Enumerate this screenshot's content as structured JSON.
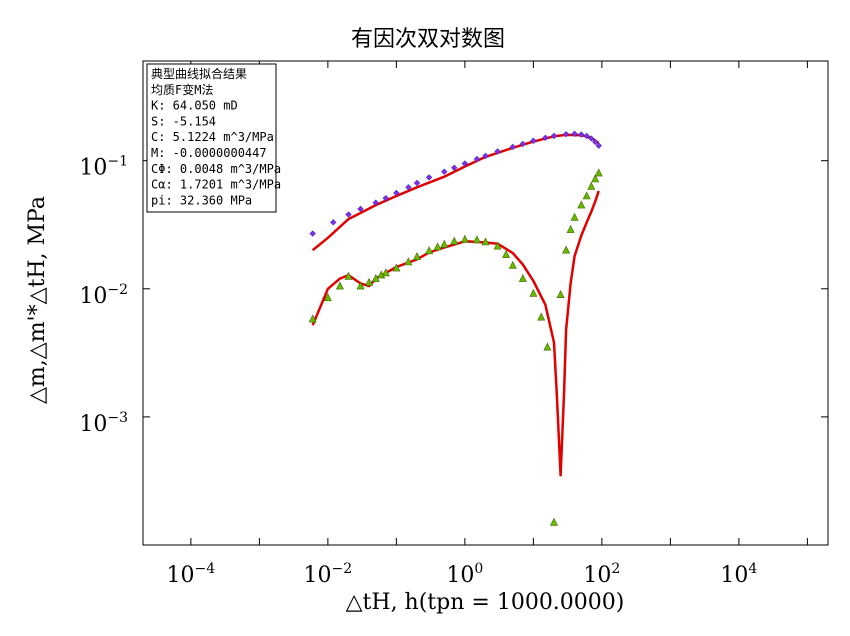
{
  "chart_data": {
    "type": "scatter",
    "title": "有因次双对数图",
    "xlabel": "△tH, h(tpn = 1000.0000)",
    "ylabel": "△m,△m'*△tH, MPa",
    "x_scale": "log",
    "y_scale": "log",
    "xlim": [
      2e-05,
      200000
    ],
    "ylim": [
      0.0001,
      0.6
    ],
    "x_ticks": [
      {
        "base": "10",
        "exp": "−4",
        "value": 0.0001
      },
      {
        "base": "10",
        "exp": "−2",
        "value": 0.01
      },
      {
        "base": "10",
        "exp": "0",
        "value": 1
      },
      {
        "base": "10",
        "exp": "2",
        "value": 100
      },
      {
        "base": "10",
        "exp": "4",
        "value": 10000
      }
    ],
    "y_ticks": [
      {
        "base": "10",
        "exp": "−1",
        "value": 0.1
      },
      {
        "base": "10",
        "exp": "−2",
        "value": 0.01
      },
      {
        "base": "10",
        "exp": "−3",
        "value": 0.001
      }
    ],
    "legend": {
      "placement": "top-left",
      "lines": [
        "典型曲线拟合结果",
        "均质F变M法",
        "  K: 64.050 mD",
        "  S: -5.154",
        "  C: 5.1224 m^3/MPa",
        "  M: -0.0000000447",
        "CΦ: 0.0048 m^3/MPa",
        "Cα: 1.7201 m^3/MPa",
        " pi: 32.360 MPa"
      ]
    },
    "colors": {
      "pressure_points": "#8a2be2",
      "derivative_points": "#66bb00",
      "model_curve": "#e00000"
    },
    "pressure_points": {
      "x": [
        0.006,
        0.012,
        0.02,
        0.03,
        0.05,
        0.07,
        0.1,
        0.15,
        0.2,
        0.3,
        0.5,
        0.7,
        1,
        1.5,
        2,
        3,
        5,
        7,
        10,
        15,
        20,
        30,
        40,
        50,
        60,
        70,
        80,
        90
      ],
      "y": [
        0.027,
        0.033,
        0.038,
        0.042,
        0.047,
        0.051,
        0.056,
        0.062,
        0.067,
        0.074,
        0.082,
        0.088,
        0.095,
        0.103,
        0.109,
        0.118,
        0.128,
        0.135,
        0.143,
        0.151,
        0.156,
        0.161,
        0.162,
        0.16,
        0.156,
        0.149,
        0.14,
        0.131
      ]
    },
    "derivative_points": {
      "x": [
        0.006,
        0.01,
        0.015,
        0.02,
        0.03,
        0.04,
        0.05,
        0.06,
        0.07,
        0.1,
        0.15,
        0.2,
        0.3,
        0.4,
        0.5,
        0.7,
        1,
        1.5,
        2,
        3,
        4,
        5,
        7,
        10,
        13,
        16,
        20,
        25,
        30,
        35,
        40,
        50,
        60,
        70,
        80,
        90
      ],
      "y": [
        0.0058,
        0.0085,
        0.0105,
        0.0125,
        0.0105,
        0.0112,
        0.012,
        0.0128,
        0.0133,
        0.0145,
        0.0162,
        0.0178,
        0.0198,
        0.0212,
        0.0222,
        0.0235,
        0.0243,
        0.0241,
        0.0232,
        0.0215,
        0.0185,
        0.0152,
        0.012,
        0.0092,
        0.006,
        0.0035,
        0.00015,
        0.009,
        0.02,
        0.029,
        0.036,
        0.045,
        0.053,
        0.063,
        0.072,
        0.08
      ]
    },
    "model_curve": {
      "x": [
        0.006,
        0.01,
        0.02,
        0.05,
        0.1,
        0.2,
        0.5,
        1,
        2,
        5,
        10,
        20,
        30,
        50,
        70,
        90
      ],
      "y": [
        0.02,
        0.025,
        0.035,
        0.045,
        0.053,
        0.062,
        0.075,
        0.09,
        0.107,
        0.126,
        0.141,
        0.155,
        0.159,
        0.158,
        0.151,
        0.137
      ]
    },
    "model_derivative": {
      "x": [
        0.006,
        0.01,
        0.015,
        0.02,
        0.03,
        0.04,
        0.05,
        0.07,
        0.1,
        0.2,
        0.3,
        0.5,
        1,
        2,
        3,
        5,
        7,
        10,
        15,
        20,
        22,
        25,
        28,
        30,
        35,
        40,
        50,
        60,
        70,
        80,
        90
      ],
      "y": [
        0.0052,
        0.01,
        0.012,
        0.0128,
        0.011,
        0.0105,
        0.012,
        0.0133,
        0.0148,
        0.017,
        0.0192,
        0.021,
        0.0235,
        0.023,
        0.0225,
        0.019,
        0.0155,
        0.0115,
        0.0075,
        0.0038,
        0.0015,
        0.00035,
        0.0015,
        0.0048,
        0.011,
        0.018,
        0.026,
        0.033,
        0.04,
        0.048,
        0.058
      ]
    }
  }
}
